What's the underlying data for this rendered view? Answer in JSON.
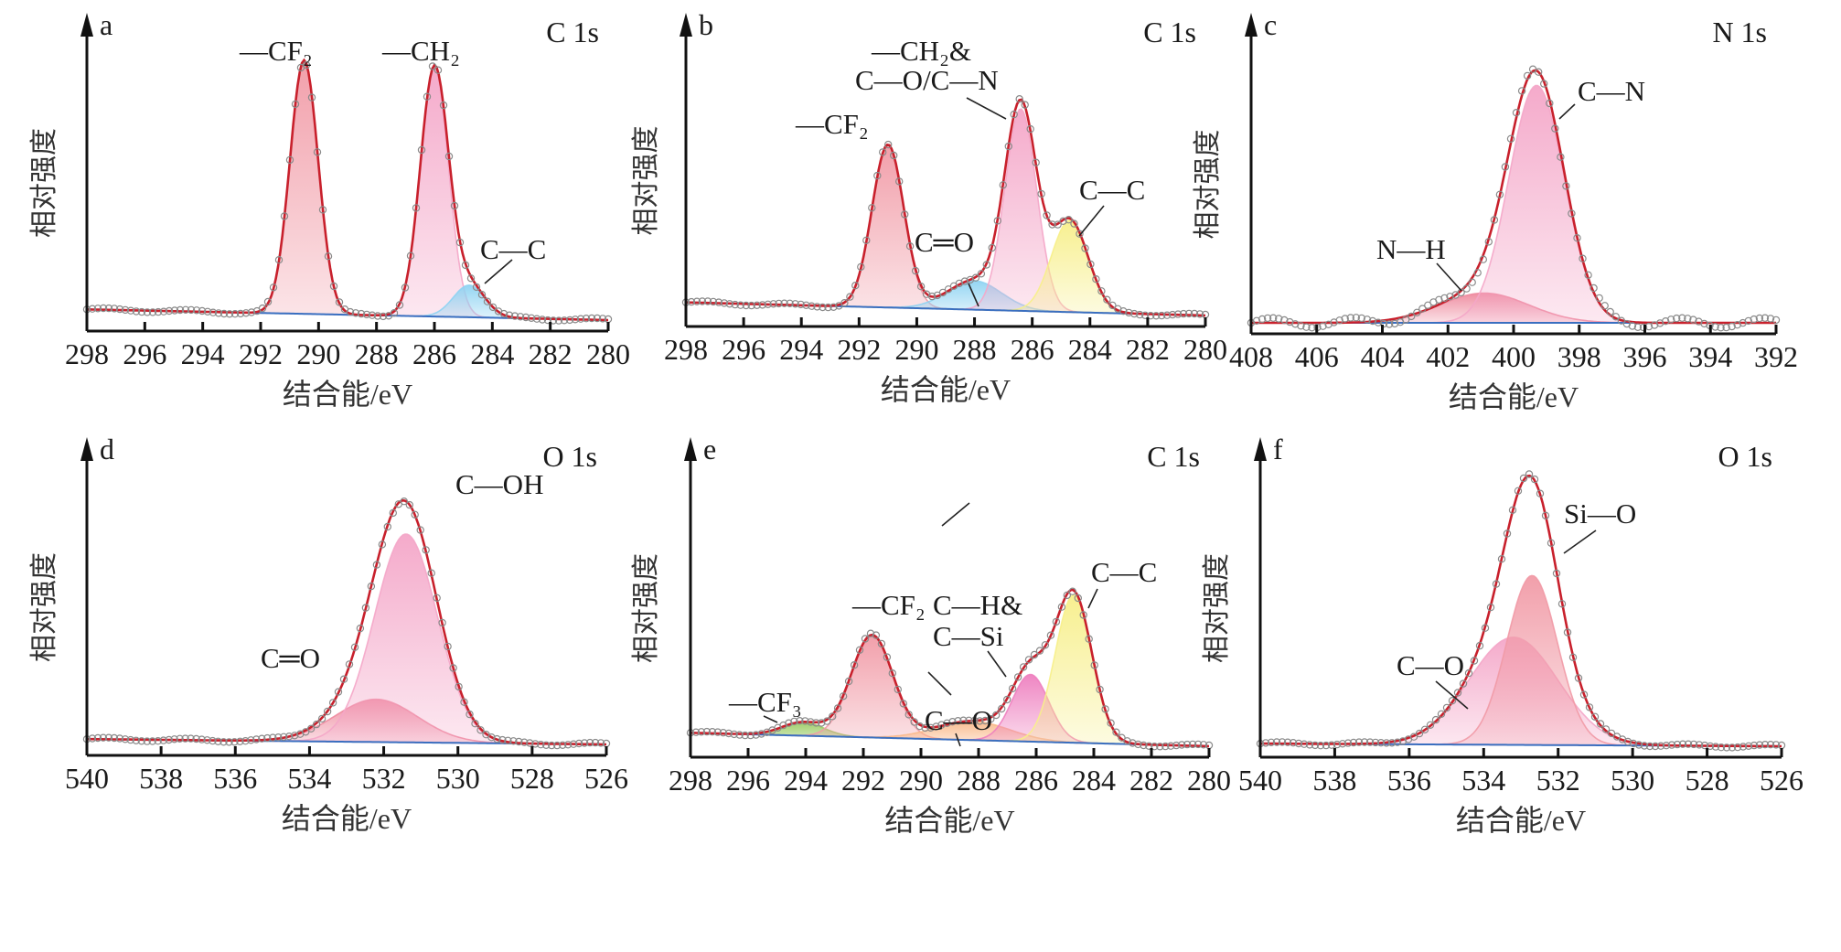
{
  "figure": {
    "y_axis_label": "相对强度",
    "x_axis_label": "结合能/eV"
  },
  "chart_data": [
    {
      "panel": "a",
      "type": "area",
      "core_level": "C 1s",
      "xlabel": "结合能/eV",
      "ylabel": "相对强度",
      "xlim": [
        298,
        280
      ],
      "x_reversed": true,
      "xticks": [
        298,
        296,
        294,
        292,
        290,
        288,
        286,
        284,
        282,
        280
      ],
      "background": {
        "start": 0.04,
        "end": 0.0
      },
      "peaks": [
        {
          "label": "—CF₂",
          "center": 290.5,
          "height": 0.95,
          "fwhm": 1.15,
          "color": "#f19aa6"
        },
        {
          "label": "—CH₂",
          "center": 286.0,
          "height": 0.93,
          "fwhm": 1.15,
          "color": "#f4a6c8"
        },
        {
          "label": "C—C",
          "center": 284.8,
          "height": 0.12,
          "fwhm": 1.3,
          "color": "#8fd3f2"
        }
      ],
      "labels": [
        "—CF₂",
        "—CH₂",
        "C—C"
      ]
    },
    {
      "panel": "b",
      "type": "area",
      "core_level": "C 1s",
      "xlabel": "结合能/eV",
      "ylabel": "相对强度",
      "xlim": [
        298,
        280
      ],
      "x_reversed": true,
      "xticks": [
        298,
        296,
        294,
        292,
        290,
        288,
        286,
        284,
        282,
        280
      ],
      "background": {
        "start": 0.05,
        "end": 0.0
      },
      "peaks": [
        {
          "label": "—CF₂",
          "center": 291.0,
          "height": 0.62,
          "fwhm": 1.3,
          "color": "#f19aa6"
        },
        {
          "label": "C═O",
          "center": 288.0,
          "height": 0.11,
          "fwhm": 2.2,
          "color": "#8fd3f2"
        },
        {
          "label": "—CH₂& C—O/C—N",
          "center": 286.4,
          "height": 0.77,
          "fwhm": 1.3,
          "color": "#f4a6c8"
        },
        {
          "label": "C—C",
          "center": 284.7,
          "height": 0.35,
          "fwhm": 1.5,
          "color": "#f7ef8a"
        }
      ],
      "labels": [
        "—CF₂",
        "—CH₂&",
        "C—O/C—N",
        "C═O",
        "C—C"
      ]
    },
    {
      "panel": "c",
      "type": "area",
      "core_level": "N 1s",
      "xlabel": "结合能/eV",
      "ylabel": "相对强度",
      "xlim": [
        408,
        392
      ],
      "x_reversed": true,
      "xticks": [
        408,
        406,
        404,
        402,
        400,
        398,
        396,
        394,
        392
      ],
      "background": {
        "start": 0.0,
        "end": 0.0
      },
      "peaks": [
        {
          "label": "N—H",
          "center": 400.9,
          "height": 0.11,
          "fwhm": 3.2,
          "color": "#ee8a9e"
        },
        {
          "label": "C—N",
          "center": 399.3,
          "height": 0.88,
          "fwhm": 2.0,
          "color": "#f4a6c8"
        }
      ],
      "labels": [
        "N—H",
        "C—N"
      ]
    },
    {
      "panel": "d",
      "type": "area",
      "core_level": "O 1s",
      "xlabel": "结合能/eV",
      "ylabel": "相对强度",
      "xlim": [
        540,
        526
      ],
      "x_reversed": true,
      "xticks": [
        540,
        538,
        536,
        534,
        532,
        530,
        528,
        526
      ],
      "background": {
        "start": 0.02,
        "end": 0.0
      },
      "peaks": [
        {
          "label": "C═O",
          "center": 532.2,
          "height": 0.16,
          "fwhm": 2.6,
          "color": "#ee8a9e"
        },
        {
          "label": "C—OH",
          "center": 531.4,
          "height": 0.78,
          "fwhm": 2.0,
          "color": "#f4a6c8"
        }
      ],
      "labels": [
        "C═O",
        "C—OH"
      ]
    },
    {
      "panel": "e",
      "type": "area",
      "core_level": "C 1s",
      "xlabel": "结合能/eV",
      "ylabel": "相对强度",
      "xlim": [
        298,
        280
      ],
      "x_reversed": true,
      "xticks": [
        298,
        296,
        294,
        292,
        290,
        288,
        286,
        284,
        282,
        280
      ],
      "background": {
        "start": 0.05,
        "end": 0.0
      },
      "peaks": [
        {
          "label": "—CF₃",
          "center": 294.1,
          "height": 0.05,
          "fwhm": 1.7,
          "color": "#9ccc65"
        },
        {
          "label": "—CF₂",
          "center": 291.7,
          "height": 0.38,
          "fwhm": 1.7,
          "color": "#f19aa6"
        },
        {
          "label": "C—O",
          "center": 288.2,
          "height": 0.07,
          "fwhm": 3.0,
          "color": "#f9b98a"
        },
        {
          "label": "C—H& C—Si",
          "center": 286.2,
          "height": 0.25,
          "fwhm": 1.5,
          "color": "#ee7fbf"
        },
        {
          "label": "C—C",
          "center": 284.7,
          "height": 0.55,
          "fwhm": 1.5,
          "color": "#f7ef8a"
        }
      ],
      "labels": [
        "—CF₃",
        "—CF₂",
        "C—O",
        "C—H&",
        "C—Si",
        "C—C"
      ]
    },
    {
      "panel": "f",
      "type": "area",
      "core_level": "O 1s",
      "xlabel": "结合能/eV",
      "ylabel": "相对强度",
      "xlim": [
        540,
        526
      ],
      "x_reversed": true,
      "xticks": [
        540,
        538,
        536,
        534,
        532,
        530,
        528,
        526
      ],
      "background": {
        "start": 0.01,
        "end": 0.0
      },
      "peaks": [
        {
          "label": "C—O",
          "center": 533.2,
          "height": 0.4,
          "fwhm": 2.8,
          "color": "#f4a6c8"
        },
        {
          "label": "Si—O",
          "center": 532.7,
          "height": 0.63,
          "fwhm": 1.6,
          "color": "#f19aa6"
        }
      ],
      "labels": [
        "C—O",
        "Si—O"
      ]
    }
  ]
}
